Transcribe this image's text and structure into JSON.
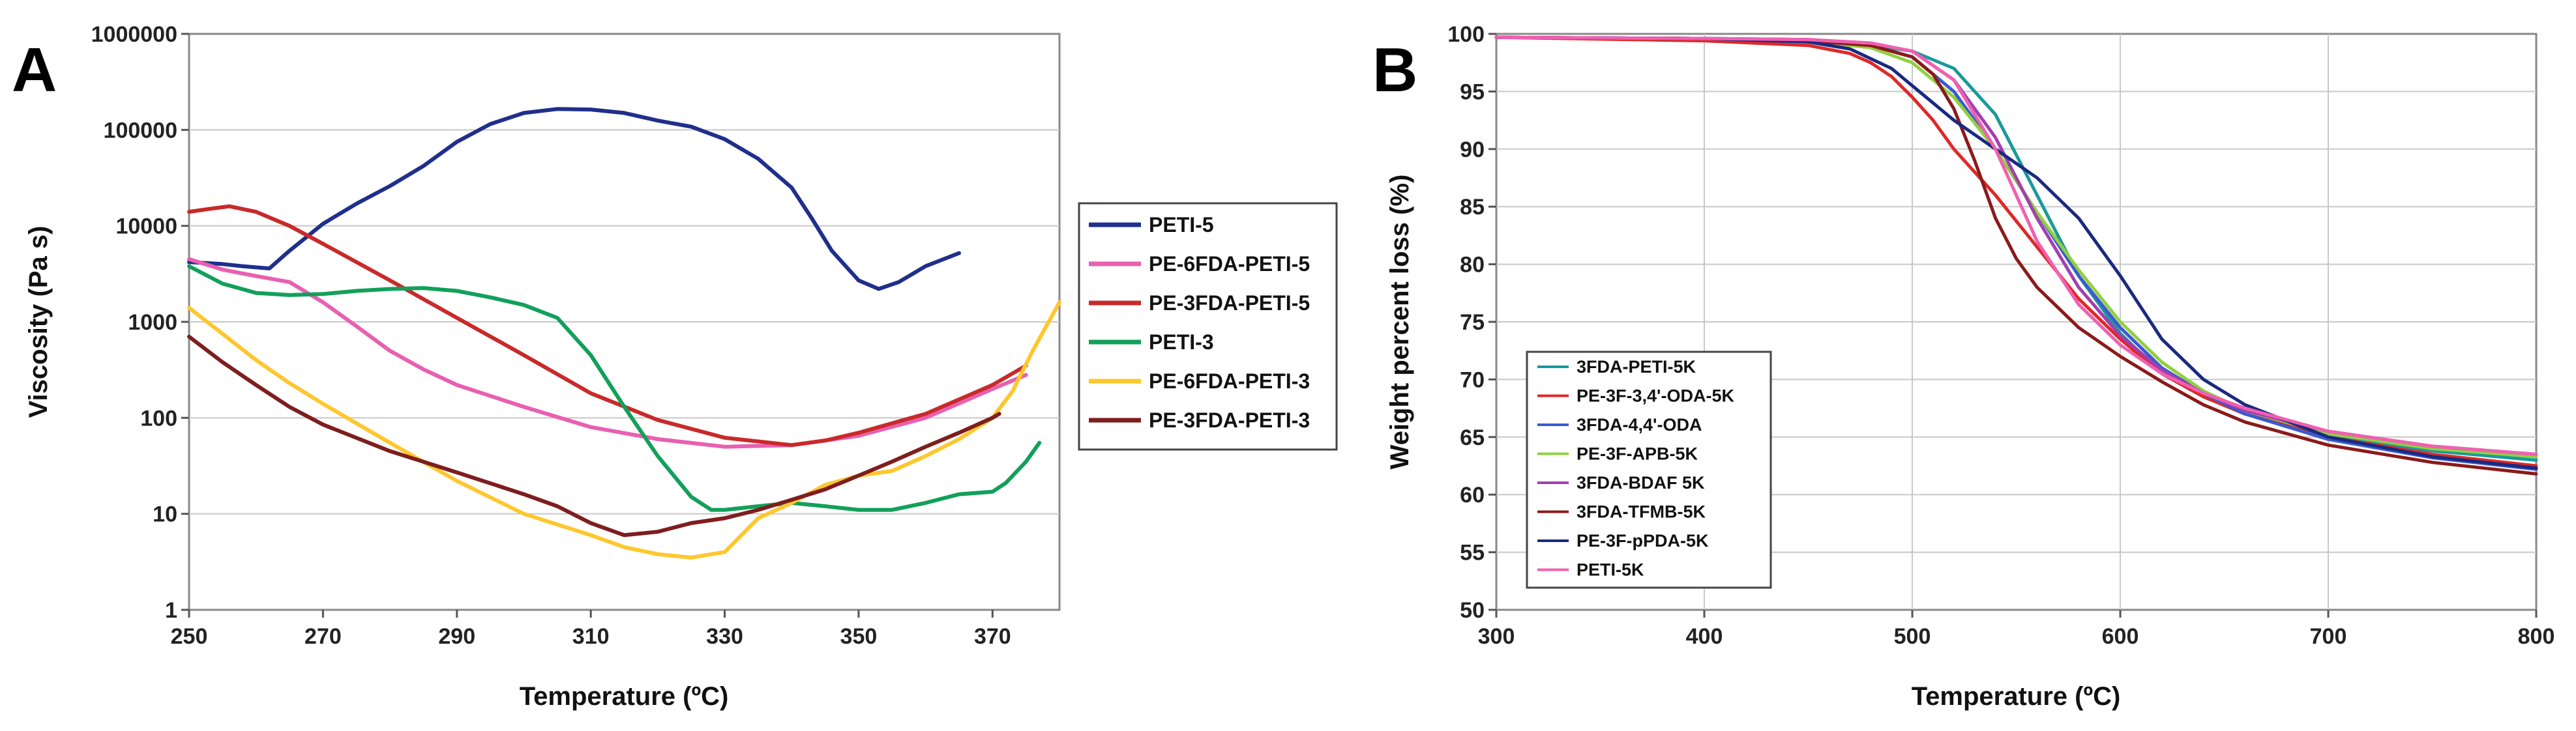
{
  "chart_data": [
    {
      "panel_label": "A",
      "type": "line",
      "title": "",
      "xlabel": "Temperature (ºC)",
      "ylabel": "Viscosity (Pa s)",
      "xlim": [
        250,
        380
      ],
      "ylim": [
        1,
        1000000
      ],
      "yscale": "log",
      "xticks": [
        250,
        270,
        290,
        310,
        330,
        350,
        370
      ],
      "xtick_labels": [
        "250",
        "270",
        "290",
        "310",
        "330",
        "350",
        "370"
      ],
      "yticks": [
        1,
        10,
        100,
        1000,
        10000,
        100000,
        1000000
      ],
      "ytick_labels": [
        "1",
        "10",
        "100",
        "1000",
        "10000",
        "100000",
        "1000000"
      ],
      "grid": "horizontal",
      "legend_position": "right",
      "series": [
        {
          "name": "PETI-5",
          "color": "#1f2f8c",
          "x": [
            250,
            255,
            258,
            262,
            265,
            270,
            275,
            280,
            285,
            290,
            295,
            300,
            305,
            310,
            315,
            320,
            325,
            330,
            335,
            340,
            343,
            346,
            350,
            353,
            356,
            360,
            365
          ],
          "y": [
            4200,
            4000,
            3800,
            3600,
            5500,
            10500,
            17000,
            26000,
            42000,
            75000,
            115000,
            150000,
            165000,
            163000,
            150000,
            125000,
            108000,
            80000,
            50000,
            25000,
            12000,
            5500,
            2700,
            2200,
            2600,
            3800,
            5200
          ]
        },
        {
          "name": "PE-6FDA-PETI-5",
          "color": "#e860b0",
          "x": [
            250,
            255,
            260,
            265,
            270,
            275,
            280,
            285,
            290,
            300,
            310,
            320,
            330,
            340,
            350,
            360,
            370,
            375
          ],
          "y": [
            4500,
            3500,
            3000,
            2600,
            1600,
            900,
            500,
            320,
            220,
            130,
            80,
            60,
            50,
            52,
            65,
            100,
            200,
            280
          ]
        },
        {
          "name": "PE-3FDA-PETI-5",
          "color": "#c82a2a",
          "x": [
            250,
            253,
            256,
            260,
            265,
            270,
            280,
            290,
            300,
            310,
            320,
            330,
            340,
            345,
            350,
            360,
            370,
            375
          ],
          "y": [
            14000,
            15000,
            16000,
            14000,
            10000,
            6500,
            2700,
            1100,
            450,
            180,
            95,
            62,
            52,
            58,
            70,
            110,
            220,
            350
          ]
        },
        {
          "name": "PETI-3",
          "color": "#12a05a",
          "x": [
            250,
            255,
            260,
            265,
            270,
            275,
            280,
            285,
            290,
            295,
            300,
            305,
            310,
            315,
            320,
            325,
            328,
            330,
            335,
            340,
            345,
            350,
            355,
            360,
            365,
            370,
            372,
            375,
            377
          ],
          "y": [
            3800,
            2500,
            2000,
            1900,
            1950,
            2100,
            2200,
            2250,
            2100,
            1800,
            1500,
            1100,
            450,
            130,
            40,
            15,
            11,
            11,
            12,
            13,
            12,
            11,
            11,
            13,
            16,
            17,
            21,
            35,
            55
          ]
        },
        {
          "name": "PE-6FDA-PETI-3",
          "color": "#ffc72e",
          "x": [
            250,
            255,
            260,
            265,
            270,
            280,
            290,
            300,
            310,
            315,
            320,
            325,
            330,
            335,
            340,
            345,
            350,
            355,
            360,
            365,
            370,
            373,
            376,
            380
          ],
          "y": [
            1400,
            750,
            400,
            230,
            140,
            55,
            22,
            10,
            6,
            4.5,
            3.8,
            3.5,
            4,
            9,
            13,
            20,
            25,
            28,
            40,
            60,
            100,
            190,
            500,
            1600
          ]
        },
        {
          "name": "PE-3FDA-PETI-3",
          "color": "#7e1e1e",
          "x": [
            250,
            255,
            260,
            265,
            270,
            280,
            290,
            300,
            305,
            310,
            315,
            320,
            325,
            330,
            335,
            340,
            345,
            350,
            355,
            360,
            365,
            370,
            371
          ],
          "y": [
            700,
            380,
            220,
            130,
            85,
            45,
            27,
            16,
            12,
            8,
            6,
            6.5,
            8,
            9,
            11,
            14,
            18,
            25,
            35,
            50,
            70,
            100,
            110
          ]
        }
      ]
    },
    {
      "panel_label": "B",
      "type": "line",
      "title": "",
      "xlabel": "Temperature (ºC)",
      "ylabel": "Weight percent loss (%)",
      "xlim": [
        300,
        800
      ],
      "ylim": [
        50,
        100
      ],
      "xticks": [
        300,
        400,
        500,
        600,
        700,
        800
      ],
      "xtick_labels": [
        "300",
        "400",
        "500",
        "600",
        "700",
        "800"
      ],
      "yticks": [
        50,
        55,
        60,
        65,
        70,
        75,
        80,
        85,
        90,
        95,
        100
      ],
      "ytick_labels": [
        "50",
        "55",
        "60",
        "65",
        "70",
        "75",
        "80",
        "85",
        "90",
        "95",
        "100"
      ],
      "grid": "both",
      "legend_position": "bottom-left",
      "series": [
        {
          "name": "3FDA-PETI-5K",
          "color": "#1a9a9a",
          "x": [
            300,
            400,
            450,
            480,
            500,
            520,
            540,
            560,
            580,
            600,
            620,
            640,
            660,
            700,
            750,
            800
          ],
          "y": [
            99.7,
            99.6,
            99.4,
            99.0,
            98.5,
            97.0,
            93.0,
            86.0,
            79.0,
            74.0,
            70.5,
            68.5,
            67.0,
            65.0,
            63.8,
            63.0
          ]
        },
        {
          "name": "PE-3F-3,4'-ODA-5K",
          "color": "#e02828",
          "x": [
            300,
            400,
            450,
            470,
            480,
            490,
            500,
            510,
            520,
            540,
            560,
            580,
            600,
            620,
            640,
            660,
            700,
            750,
            800
          ],
          "y": [
            99.7,
            99.4,
            99.0,
            98.3,
            97.5,
            96.3,
            94.5,
            92.5,
            90.0,
            86.0,
            81.5,
            77.0,
            73.5,
            70.5,
            68.5,
            67.0,
            65.0,
            63.5,
            62.5
          ]
        },
        {
          "name": "3FDA-4,4'-ODA",
          "color": "#3a5ad0",
          "x": [
            300,
            400,
            450,
            480,
            500,
            520,
            540,
            560,
            580,
            600,
            620,
            640,
            660,
            700,
            750,
            800
          ],
          "y": [
            99.7,
            99.6,
            99.5,
            99.0,
            98.0,
            95.0,
            90.0,
            84.5,
            79.0,
            74.5,
            71.0,
            68.8,
            67.0,
            64.8,
            63.2,
            62.2
          ]
        },
        {
          "name": "PE-3F-APB-5K",
          "color": "#90d040",
          "x": [
            300,
            400,
            450,
            480,
            500,
            520,
            540,
            560,
            580,
            600,
            620,
            640,
            660,
            700,
            750,
            800
          ],
          "y": [
            99.7,
            99.6,
            99.4,
            98.8,
            97.5,
            94.5,
            90.0,
            84.5,
            79.5,
            75.0,
            71.5,
            69.0,
            67.3,
            65.3,
            64.0,
            63.3
          ]
        },
        {
          "name": "3FDA-BDAF 5K",
          "color": "#a040b0",
          "x": [
            300,
            400,
            450,
            480,
            500,
            520,
            540,
            560,
            580,
            600,
            620,
            640,
            660,
            700,
            750,
            800
          ],
          "y": [
            99.7,
            99.6,
            99.5,
            99.2,
            98.5,
            96.0,
            91.0,
            84.0,
            78.0,
            73.8,
            70.8,
            68.8,
            67.3,
            65.5,
            64.2,
            63.5
          ]
        },
        {
          "name": "3FDA-TFMB-5K",
          "color": "#8b1a1a",
          "x": [
            300,
            400,
            450,
            480,
            500,
            510,
            520,
            530,
            540,
            550,
            560,
            580,
            600,
            620,
            640,
            660,
            700,
            750,
            800
          ],
          "y": [
            99.7,
            99.6,
            99.4,
            99.0,
            98.0,
            96.5,
            93.5,
            89.0,
            84.0,
            80.5,
            78.0,
            74.5,
            72.0,
            69.8,
            67.8,
            66.3,
            64.3,
            62.8,
            61.8
          ]
        },
        {
          "name": "PE-3F-pPDA-5K",
          "color": "#1a2a80",
          "x": [
            300,
            400,
            450,
            470,
            490,
            500,
            510,
            520,
            540,
            560,
            580,
            600,
            620,
            640,
            660,
            700,
            750,
            800
          ],
          "y": [
            99.7,
            99.6,
            99.3,
            98.7,
            97.0,
            95.5,
            94.0,
            92.5,
            90.0,
            87.5,
            84.0,
            79.0,
            73.5,
            70.0,
            67.8,
            65.0,
            63.3,
            62.3
          ]
        },
        {
          "name": "PETI-5K",
          "color": "#f060b0",
          "x": [
            300,
            400,
            450,
            480,
            500,
            520,
            540,
            560,
            580,
            600,
            620,
            640,
            660,
            700,
            750,
            800
          ],
          "y": [
            99.7,
            99.6,
            99.5,
            99.2,
            98.5,
            96.0,
            90.0,
            82.0,
            76.5,
            73.0,
            70.5,
            68.8,
            67.5,
            65.5,
            64.2,
            63.5
          ]
        }
      ]
    }
  ]
}
